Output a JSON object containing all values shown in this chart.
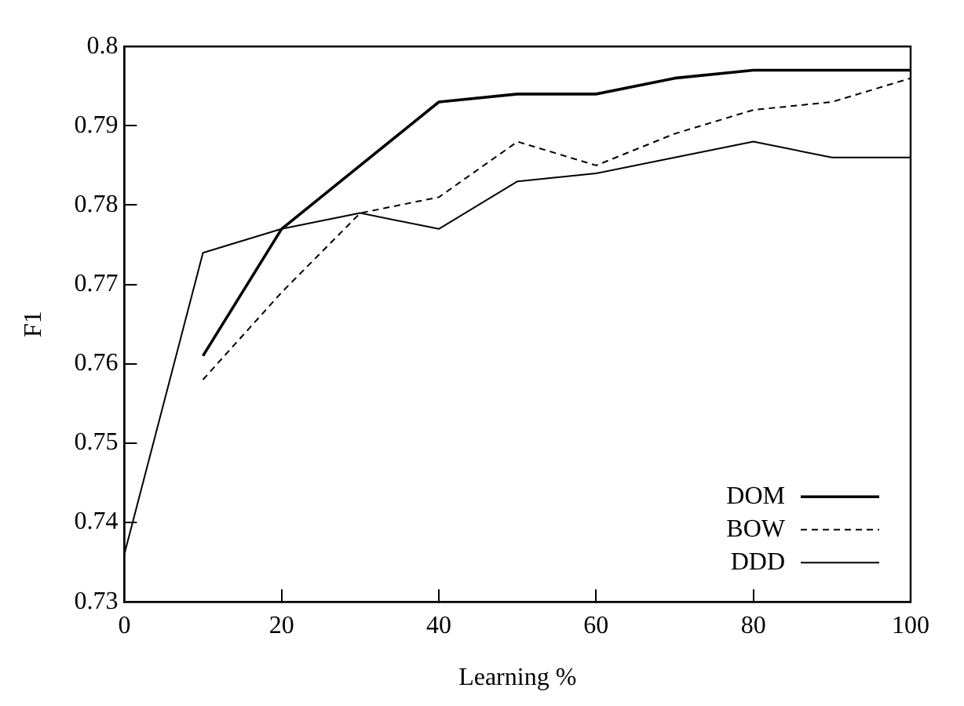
{
  "chart_data": {
    "type": "line",
    "xlabel": "Learning %",
    "ylabel": "F1",
    "xlim": [
      0,
      100
    ],
    "xticks": [
      0,
      20,
      40,
      60,
      80,
      100
    ],
    "ylim": [
      0.73,
      0.8
    ],
    "yticks": [
      0.73,
      0.74,
      0.75,
      0.76,
      0.77,
      0.78,
      0.79,
      0.8
    ],
    "grid": false,
    "legend": "bottom right",
    "marker": "none",
    "series": [
      {
        "name": "DOM",
        "color": "#000000",
        "line_style": "solid",
        "x": [
          10,
          20,
          30,
          40,
          50,
          60,
          70,
          80,
          90,
          100
        ],
        "values": [
          0.761,
          0.777,
          0.785,
          0.793,
          0.794,
          0.794,
          0.796,
          0.797,
          0.797,
          0.797
        ]
      },
      {
        "name": "BOW",
        "color": "#000000",
        "line_style": "dashed",
        "x": [
          10,
          20,
          30,
          40,
          50,
          60,
          70,
          80,
          90,
          100
        ],
        "values": [
          0.758,
          0.769,
          0.779,
          0.781,
          0.788,
          0.785,
          0.789,
          0.792,
          0.793,
          0.796
        ]
      },
      {
        "name": "DDD",
        "color": "#000000",
        "line_style": "solid",
        "x": [
          0,
          10,
          20,
          30,
          40,
          50,
          60,
          70,
          80,
          90,
          100
        ],
        "values": [
          0.736,
          0.774,
          0.777,
          0.779,
          0.777,
          0.783,
          0.784,
          0.786,
          0.788,
          0.786,
          0.786
        ]
      }
    ]
  }
}
